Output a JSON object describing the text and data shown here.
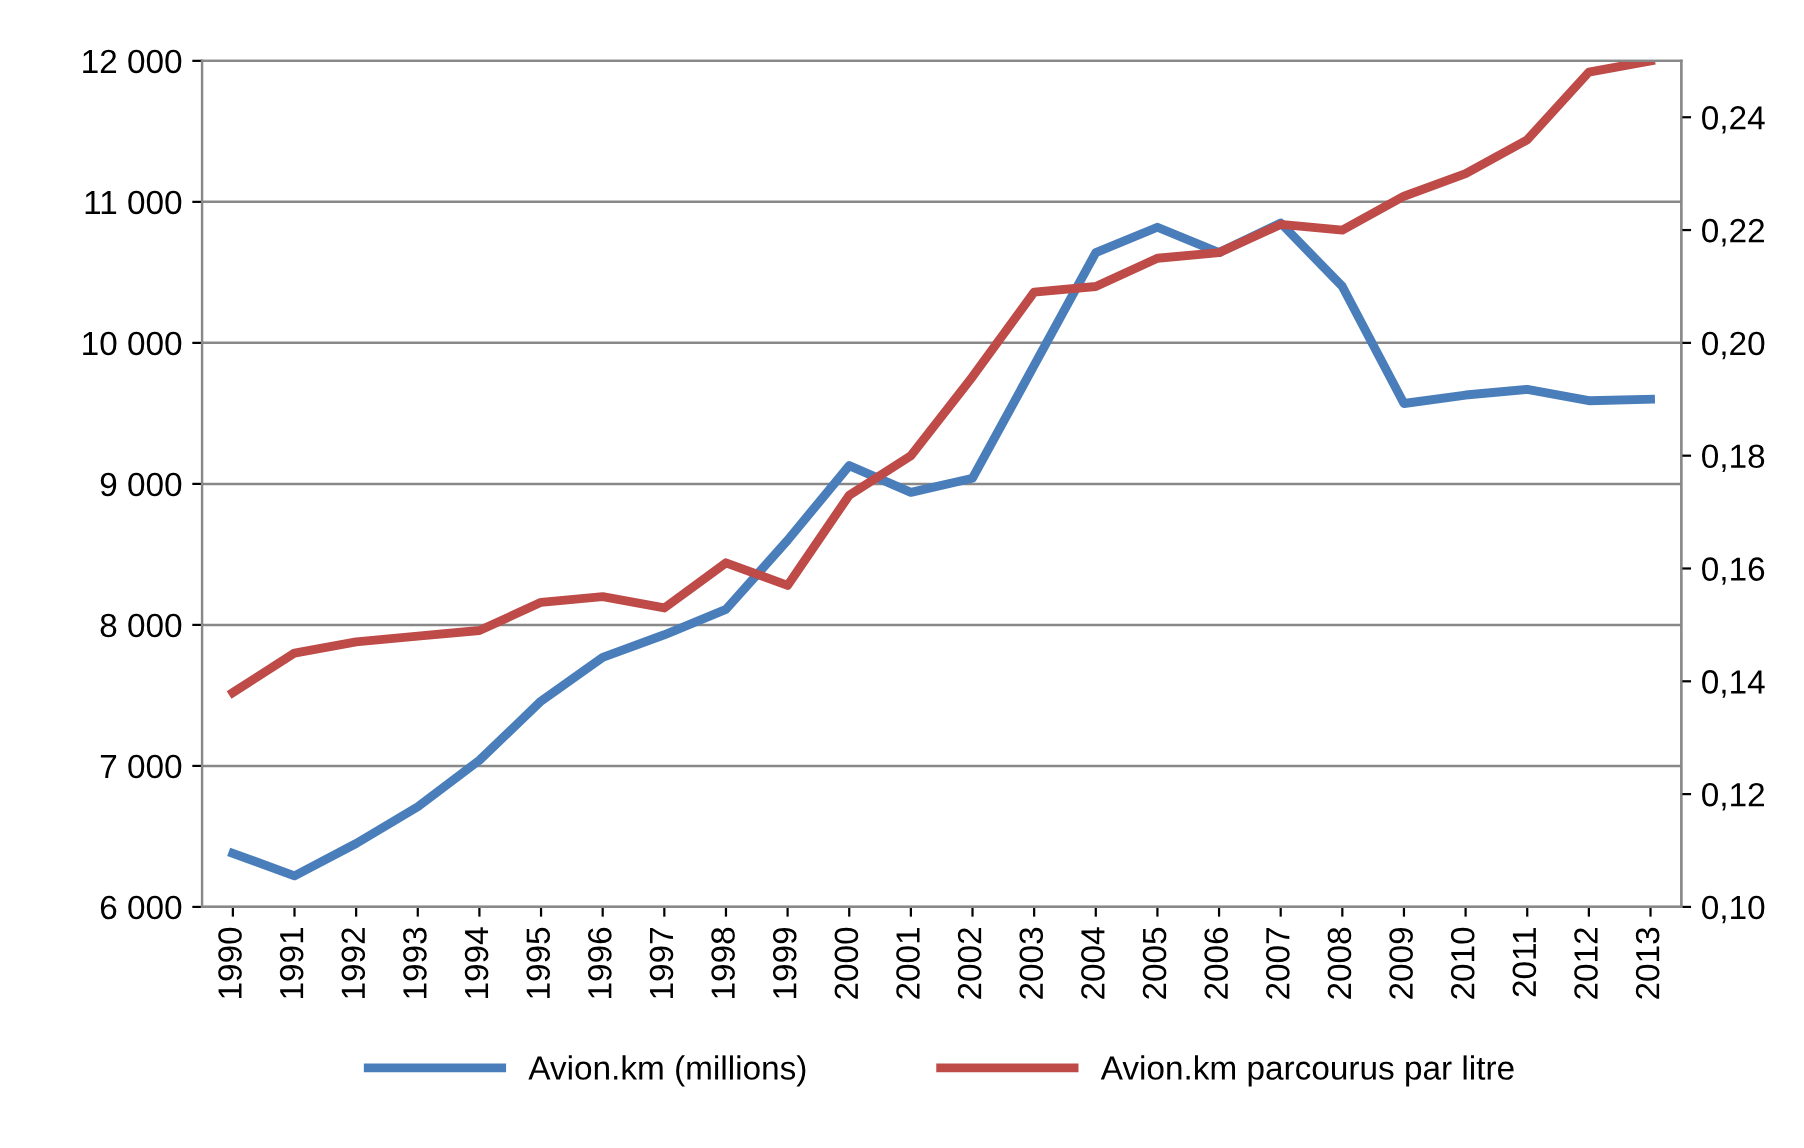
{
  "chart_data": {
    "type": "line",
    "categories": [
      "1990",
      "1991",
      "1992",
      "1993",
      "1994",
      "1995",
      "1996",
      "1997",
      "1998",
      "1999",
      "2000",
      "2001",
      "2002",
      "2003",
      "2004",
      "2005",
      "2006",
      "2007",
      "2008",
      "2009",
      "2010",
      "2011",
      "2012",
      "2013"
    ],
    "series": [
      {
        "name": "Avion.km (millions)",
        "color": "#4a7ebb",
        "values": [
          6380,
          6220,
          6450,
          6710,
          7040,
          7460,
          7770,
          7930,
          8110,
          8600,
          9130,
          8940,
          9040,
          9840,
          10640,
          10820,
          10640,
          10850,
          10400,
          9570,
          9630,
          9670,
          9590,
          9600
        ]
      },
      {
        "name": "Avion.km parcourus par litre",
        "color": "#be4b48",
        "axis": "y2",
        "values": [
          0.138,
          0.145,
          0.147,
          0.148,
          0.149,
          0.154,
          0.155,
          0.153,
          0.161,
          0.157,
          0.173,
          0.18,
          0.194,
          0.209,
          0.21,
          0.215,
          0.216,
          0.221,
          0.22,
          0.226,
          0.23,
          0.236,
          0.248,
          0.25
        ]
      }
    ],
    "ylim": [
      6000,
      12000
    ],
    "yticks": [
      {
        "value": 6000,
        "label": "6 000"
      },
      {
        "value": 7000,
        "label": "7 000"
      },
      {
        "value": 8000,
        "label": "8 000"
      },
      {
        "value": 9000,
        "label": "9 000"
      },
      {
        "value": 10000,
        "label": "10 000"
      },
      {
        "value": 11000,
        "label": "11 000"
      },
      {
        "value": 12000,
        "label": "12 000"
      }
    ],
    "y2lim": [
      0.1,
      0.25
    ],
    "y2ticks": [
      {
        "value": 0.1,
        "label": "0,10"
      },
      {
        "value": 0.12,
        "label": "0,12"
      },
      {
        "value": 0.14,
        "label": "0,14"
      },
      {
        "value": 0.16,
        "label": "0,16"
      },
      {
        "value": 0.18,
        "label": "0,18"
      },
      {
        "value": 0.2,
        "label": "0,20"
      },
      {
        "value": 0.22,
        "label": "0,22"
      },
      {
        "value": 0.24,
        "label": "0,24"
      }
    ],
    "grid": "y",
    "legend": "bottom",
    "marker": "none",
    "line_style": "solid"
  }
}
